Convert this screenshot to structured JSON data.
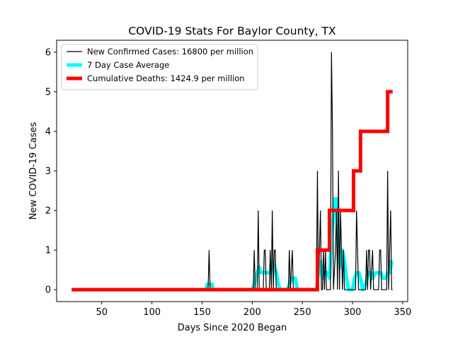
{
  "chart_data": {
    "type": "line",
    "title": "COVID-19 Stats For Baylor County, TX",
    "xlabel": "Days Since 2020 Began",
    "ylabel": "New COVID-19 Cases",
    "xlim": [
      5,
      355
    ],
    "ylim": [
      -0.3,
      6.3
    ],
    "xticks": [
      50,
      100,
      150,
      200,
      250,
      300,
      350
    ],
    "yticks": [
      0,
      1,
      2,
      3,
      4,
      5,
      6
    ],
    "grid": false,
    "legend_position": "upper-left",
    "series": [
      {
        "name": "New Confirmed Cases: 16800 per million",
        "color": "#000000",
        "style": "thin-line",
        "points": [
          [
            20,
            0
          ],
          [
            155,
            0
          ],
          [
            156,
            0
          ],
          [
            157,
            1
          ],
          [
            158,
            0
          ],
          [
            201,
            0
          ],
          [
            202,
            1
          ],
          [
            203,
            0
          ],
          [
            205,
            0
          ],
          [
            206,
            2
          ],
          [
            207,
            0
          ],
          [
            211,
            0
          ],
          [
            212,
            1
          ],
          [
            213,
            1
          ],
          [
            214,
            0
          ],
          [
            217,
            0
          ],
          [
            218,
            1
          ],
          [
            219,
            0
          ],
          [
            220,
            2
          ],
          [
            221,
            0
          ],
          [
            222,
            1
          ],
          [
            223,
            1
          ],
          [
            224,
            0
          ],
          [
            236,
            0
          ],
          [
            237,
            1
          ],
          [
            238,
            0
          ],
          [
            240,
            1
          ],
          [
            241,
            0
          ],
          [
            264,
            0
          ],
          [
            265,
            3
          ],
          [
            266,
            0
          ],
          [
            268,
            2
          ],
          [
            269,
            0
          ],
          [
            270,
            0
          ],
          [
            271,
            1
          ],
          [
            272,
            0
          ],
          [
            273,
            1
          ],
          [
            274,
            0
          ],
          [
            278,
            0
          ],
          [
            279,
            6
          ],
          [
            280,
            4
          ],
          [
            281,
            0
          ],
          [
            283,
            1
          ],
          [
            284,
            2
          ],
          [
            285,
            0
          ],
          [
            286,
            3
          ],
          [
            287,
            0
          ],
          [
            288,
            2
          ],
          [
            289,
            1
          ],
          [
            290,
            0
          ],
          [
            291,
            1
          ],
          [
            292,
            0
          ],
          [
            303,
            0
          ],
          [
            304,
            2
          ],
          [
            305,
            1
          ],
          [
            306,
            0
          ],
          [
            313,
            0
          ],
          [
            314,
            1
          ],
          [
            315,
            0
          ],
          [
            316,
            1
          ],
          [
            317,
            1
          ],
          [
            318,
            0
          ],
          [
            320,
            1
          ],
          [
            321,
            0
          ],
          [
            326,
            0
          ],
          [
            327,
            1
          ],
          [
            328,
            1
          ],
          [
            329,
            0
          ],
          [
            334,
            0
          ],
          [
            335,
            3
          ],
          [
            336,
            0
          ],
          [
            338,
            2
          ],
          [
            339,
            0
          ],
          [
            340,
            0
          ]
        ]
      },
      {
        "name": "7 Day Case Average",
        "color": "#00ffff",
        "style": "thick-line",
        "points": [
          [
            20,
            0
          ],
          [
            154,
            0
          ],
          [
            155,
            0.14
          ],
          [
            160,
            0.14
          ],
          [
            161,
            0
          ],
          [
            200,
            0
          ],
          [
            202,
            0.14
          ],
          [
            205,
            0.43
          ],
          [
            207,
            0.57
          ],
          [
            209,
            0.43
          ],
          [
            211,
            0.43
          ],
          [
            213,
            0.43
          ],
          [
            215,
            0.43
          ],
          [
            218,
            0.43
          ],
          [
            220,
            0.71
          ],
          [
            222,
            0.57
          ],
          [
            224,
            0.43
          ],
          [
            226,
            0.14
          ],
          [
            228,
            0
          ],
          [
            235,
            0
          ],
          [
            237,
            0.14
          ],
          [
            240,
            0.29
          ],
          [
            243,
            0.29
          ],
          [
            245,
            0
          ],
          [
            264,
            0
          ],
          [
            266,
            0.43
          ],
          [
            268,
            0.71
          ],
          [
            270,
            0.29
          ],
          [
            272,
            0.43
          ],
          [
            275,
            0.43
          ],
          [
            277,
            0.29
          ],
          [
            279,
            1.29
          ],
          [
            281,
            1.86
          ],
          [
            282,
            2.29
          ],
          [
            284,
            2.29
          ],
          [
            286,
            1
          ],
          [
            288,
            0.57
          ],
          [
            290,
            1
          ],
          [
            292,
            0.71
          ],
          [
            294,
            0.29
          ],
          [
            296,
            0
          ],
          [
            300,
            0
          ],
          [
            302,
            0.29
          ],
          [
            304,
            0.43
          ],
          [
            306,
            0.43
          ],
          [
            308,
            0.29
          ],
          [
            310,
            0
          ],
          [
            313,
            0.14
          ],
          [
            316,
            0.43
          ],
          [
            318,
            0.43
          ],
          [
            320,
            0.29
          ],
          [
            323,
            0.43
          ],
          [
            326,
            0.43
          ],
          [
            328,
            0.43
          ],
          [
            330,
            0.29
          ],
          [
            333,
            0.29
          ],
          [
            335,
            0.43
          ],
          [
            337,
            0.43
          ],
          [
            339,
            0.71
          ],
          [
            340,
            0.71
          ]
        ]
      },
      {
        "name": "Cumulative Deaths: 1424.9 per million",
        "color": "#ff0000",
        "style": "thick-step",
        "points": [
          [
            20,
            0
          ],
          [
            265,
            0
          ],
          [
            265,
            1
          ],
          [
            277,
            1
          ],
          [
            277,
            2
          ],
          [
            301,
            2
          ],
          [
            301,
            3
          ],
          [
            308,
            3
          ],
          [
            308,
            4
          ],
          [
            335,
            4
          ],
          [
            335,
            5
          ],
          [
            340,
            5
          ]
        ]
      }
    ]
  }
}
